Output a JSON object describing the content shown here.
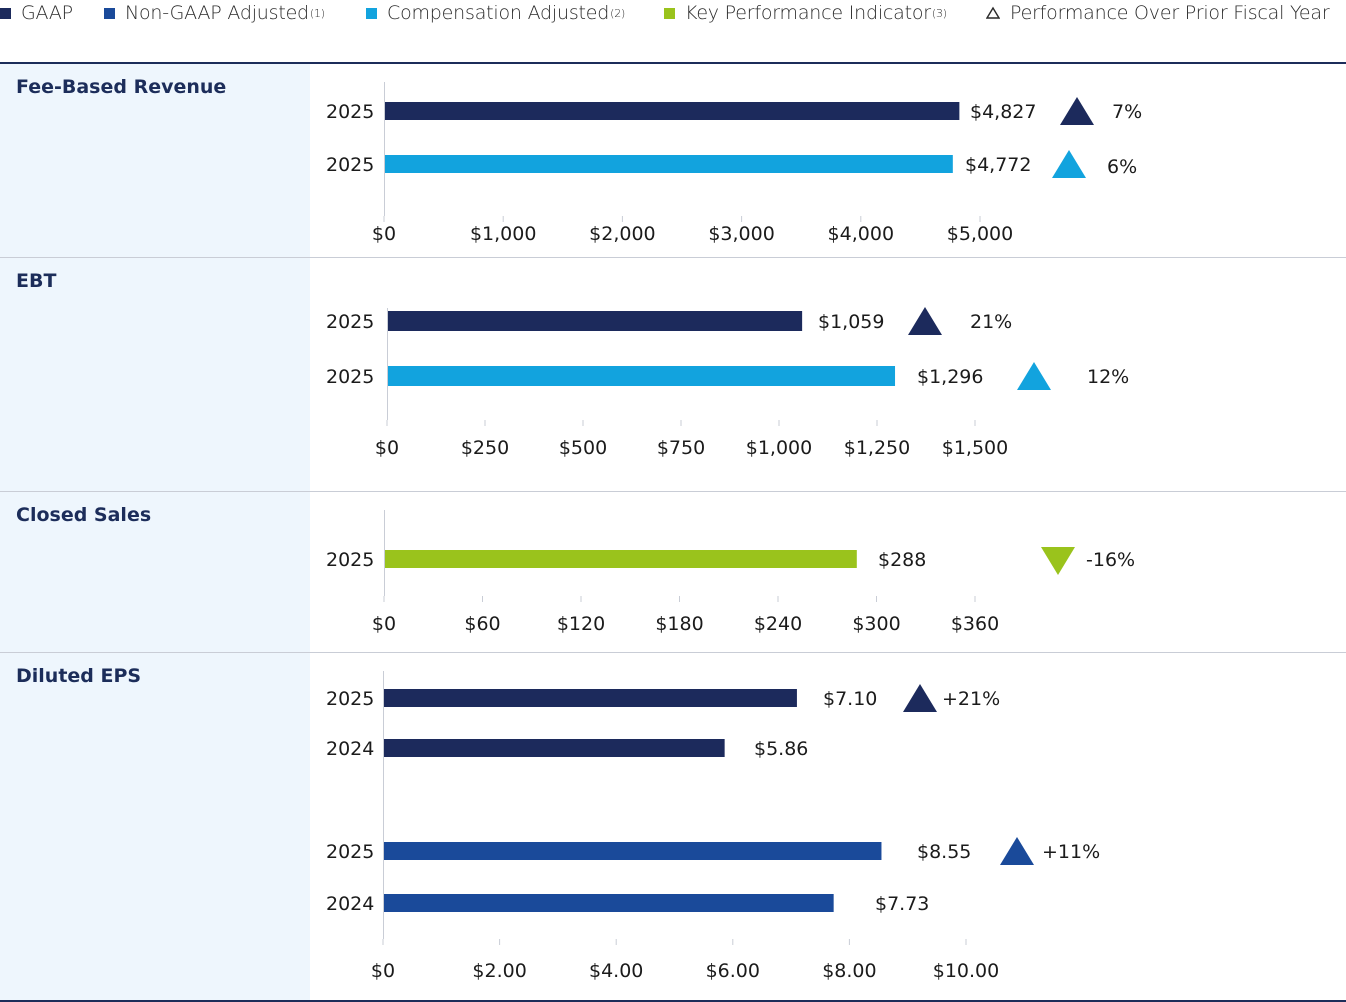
{
  "colors": {
    "gaap": "#1c2a5c",
    "non_gaap": "#1a4a9a",
    "compensation": "#12a3de",
    "kpi": "#9ac31c",
    "axis": "#c9cdd6",
    "title": "#1c2d5a",
    "panel_bg": "#eef6fd"
  },
  "legend": [
    {
      "key": "gaap",
      "label": "GAAP",
      "note": "",
      "marker": "square"
    },
    {
      "key": "non_gaap",
      "label": "Non-GAAP Adjusted",
      "note": "(1)",
      "marker": "square"
    },
    {
      "key": "compensation",
      "label": "Compensation Adjusted",
      "note": "(2)",
      "marker": "square"
    },
    {
      "key": "kpi",
      "label": "Key Performance Indicator",
      "note": "(3)",
      "marker": "square"
    },
    {
      "key": "change",
      "label": "Performance Over Prior Fiscal Year",
      "note": "",
      "marker": "triangle-outline"
    }
  ],
  "chart_data": [
    {
      "type": "bar",
      "orientation": "horizontal",
      "title": "Fee-Based Revenue",
      "xlim": [
        0,
        5000
      ],
      "ticks": [
        "$0",
        "$1,000",
        "$2,000",
        "$3,000",
        "$4,000",
        "$5,000"
      ],
      "bars": [
        {
          "category": "2025",
          "value": 4827,
          "label": "$4,827",
          "series": "gaap",
          "change": {
            "text": "7%",
            "direction": "up"
          }
        },
        {
          "category": "2025",
          "value": 4772,
          "label": "$4,772",
          "series": "compensation",
          "change": {
            "text": "6%",
            "direction": "up"
          }
        }
      ]
    },
    {
      "type": "bar",
      "orientation": "horizontal",
      "title": "EBT",
      "xlim": [
        0,
        1500
      ],
      "ticks": [
        "$0",
        "$250",
        "$500",
        "$750",
        "$1,000",
        "$1,250",
        "$1,500"
      ],
      "bars": [
        {
          "category": "2025",
          "value": 1059,
          "label": "$1,059",
          "series": "gaap",
          "change": {
            "text": "21%",
            "direction": "up"
          }
        },
        {
          "category": "2025",
          "value": 1296,
          "label": "$1,296",
          "series": "compensation",
          "change": {
            "text": "12%",
            "direction": "up"
          }
        }
      ]
    },
    {
      "type": "bar",
      "orientation": "horizontal",
      "title": "Closed Sales",
      "xlim": [
        0,
        360
      ],
      "ticks": [
        "$0",
        "$60",
        "$120",
        "$180",
        "$240",
        "$300",
        "$360"
      ],
      "bars": [
        {
          "category": "2025",
          "value": 288,
          "label": "$288",
          "series": "kpi",
          "change": {
            "text": "-16%",
            "direction": "down"
          }
        }
      ]
    },
    {
      "type": "bar",
      "orientation": "horizontal",
      "title": "Diluted EPS",
      "xlim": [
        0,
        10
      ],
      "ticks": [
        "$0",
        "$2.00",
        "$4.00",
        "$6.00",
        "$8.00",
        "$10.00"
      ],
      "bars": [
        {
          "category": "2025",
          "value": 7.1,
          "label": "$7.10",
          "series": "gaap",
          "change": {
            "text": "+21%",
            "direction": "up"
          }
        },
        {
          "category": "2024",
          "value": 5.86,
          "label": "$5.86",
          "series": "gaap",
          "change": null
        },
        {
          "category": "2025",
          "value": 8.55,
          "label": "$8.55",
          "series": "non_gaap",
          "change": {
            "text": "+11%",
            "direction": "up"
          }
        },
        {
          "category": "2024",
          "value": 7.73,
          "label": "$7.73",
          "series": "non_gaap",
          "change": null
        }
      ]
    }
  ]
}
